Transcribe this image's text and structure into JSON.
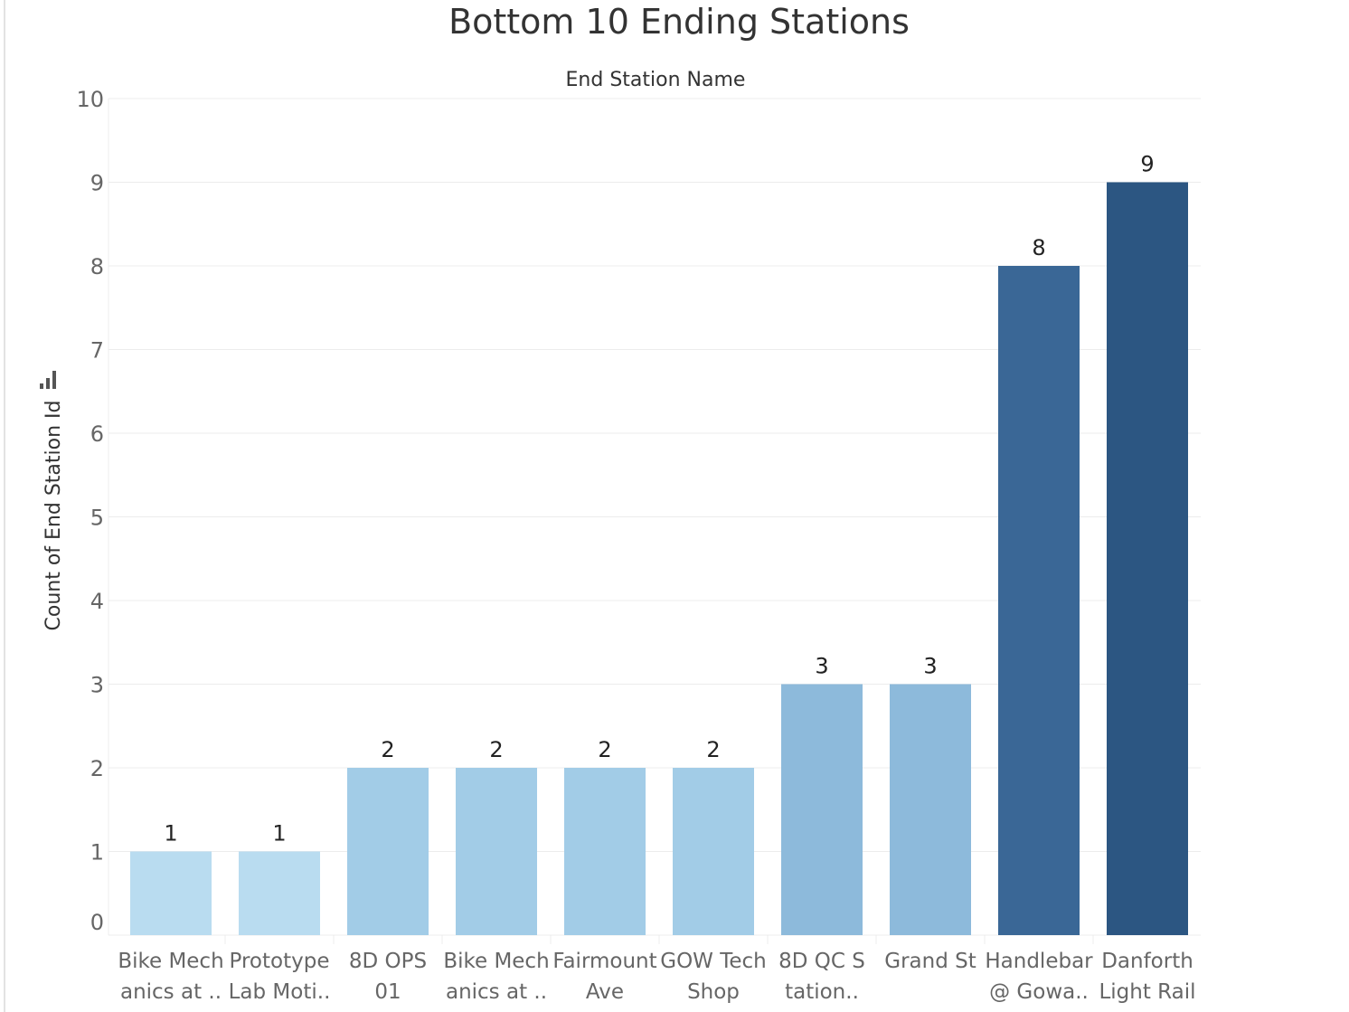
{
  "chart_data": {
    "type": "bar",
    "title": "Bottom 10 Ending Stations",
    "column_header": "End Station Name",
    "ylabel": "Count of End Station Id",
    "xlabel": "",
    "ylim": [
      0,
      10
    ],
    "y_ticks": [
      "0",
      "1",
      "2",
      "3",
      "4",
      "5",
      "6",
      "7",
      "8",
      "9",
      "10"
    ],
    "grid": true,
    "categories": [
      [
        "Bike Mech",
        "anics at .."
      ],
      [
        "Prototype",
        "Lab Moti.."
      ],
      [
        "8D OPS",
        "01"
      ],
      [
        "Bike Mech",
        "anics at .."
      ],
      [
        "Fairmount",
        "Ave"
      ],
      [
        "GOW Tech",
        "Shop"
      ],
      [
        "8D QC S",
        "tation.."
      ],
      [
        "Grand St",
        ""
      ],
      [
        "Handlebar",
        "@ Gowa.."
      ],
      [
        "Danforth",
        "Light Rail"
      ]
    ],
    "values": [
      1,
      1,
      2,
      2,
      2,
      2,
      3,
      3,
      8,
      9
    ],
    "data_labels": [
      "1",
      "1",
      "2",
      "2",
      "2",
      "2",
      "3",
      "3",
      "8",
      "9"
    ],
    "colors": {
      "v1": "#b9dcf0",
      "v2": "#a2cce7",
      "v3": "#8dbadb",
      "v8": "#3a6796",
      "v9": "#2c5682",
      "grid": "#ececec",
      "tick_text": "#666666",
      "label_text": "#222222"
    }
  }
}
